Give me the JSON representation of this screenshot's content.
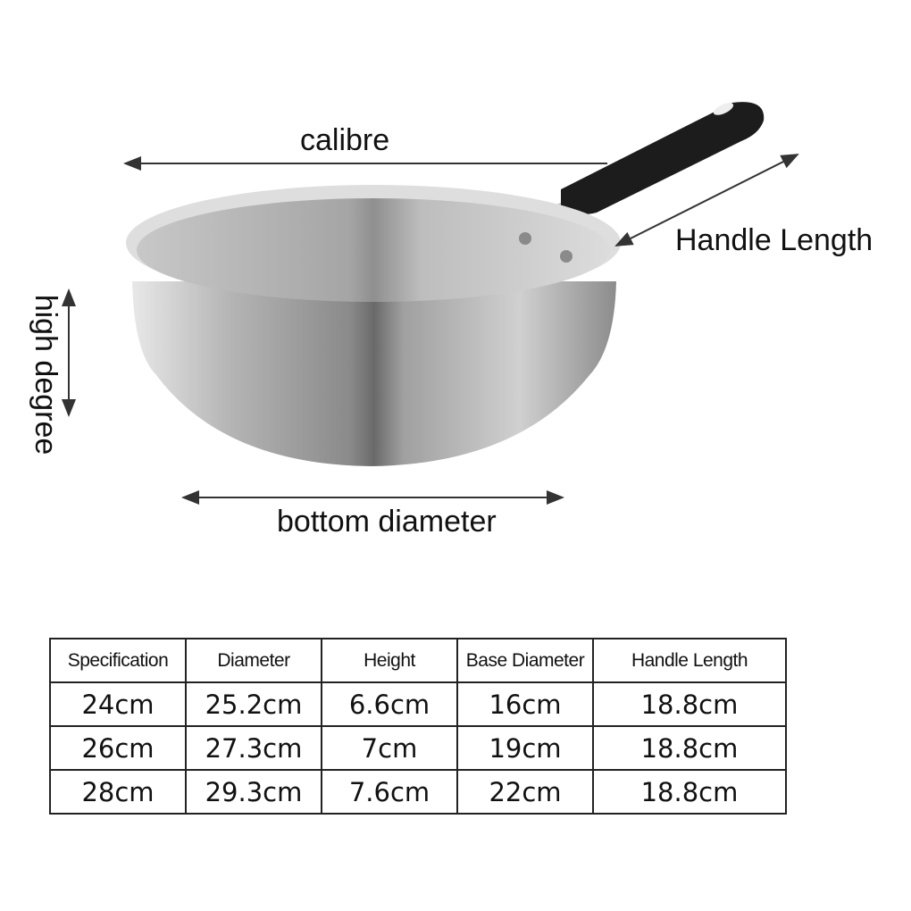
{
  "labels": {
    "calibre": "calibre",
    "handle_length": "Handle Length",
    "high_degree": "high degree",
    "bottom_diameter": "bottom diameter"
  },
  "colors": {
    "handle": "#1a1a1a",
    "steel": "#b8b8b8",
    "text": "#111111"
  },
  "table": {
    "headers": [
      "Specification",
      "Diameter",
      "Height",
      "Base Diameter",
      "Handle Length"
    ],
    "rows": [
      [
        "24cm",
        "25.2cm",
        "6.6cm",
        "16cm",
        "18.8cm"
      ],
      [
        "26cm",
        "27.3cm",
        "7cm",
        "19cm",
        "18.8cm"
      ],
      [
        "28cm",
        "29.3cm",
        "7.6cm",
        "22cm",
        "18.8cm"
      ]
    ]
  }
}
